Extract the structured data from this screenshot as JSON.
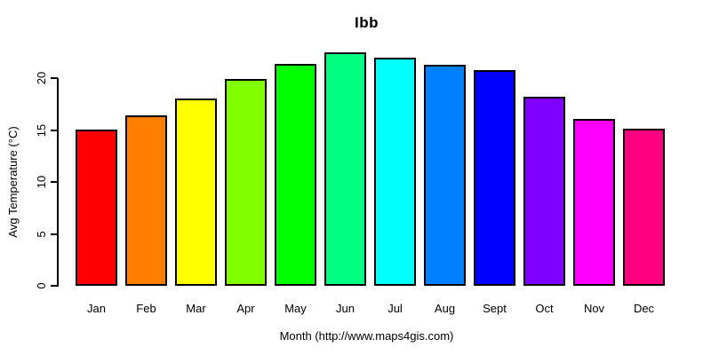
{
  "chart_data": {
    "type": "bar",
    "title": "Ibb",
    "xlabel": "Month (http://www.maps4gis.com)",
    "ylabel": "Avg Temperature (°C)",
    "categories": [
      "Jan",
      "Feb",
      "Mar",
      "Apr",
      "May",
      "Jun",
      "Jul",
      "Aug",
      "Sept",
      "Oct",
      "Nov",
      "Dec"
    ],
    "values": [
      15.0,
      16.4,
      18.0,
      19.9,
      21.4,
      22.5,
      22.0,
      21.3,
      20.8,
      18.2,
      16.1,
      15.1
    ],
    "bar_colors": [
      "#FF0000",
      "#FF8000",
      "#FFFF00",
      "#80FF00",
      "#00FF00",
      "#00FF80",
      "#00FFFF",
      "#0080FF",
      "#0000FF",
      "#8000FF",
      "#FF00FF",
      "#FF0080"
    ],
    "bar_border_color": "#000000",
    "ylim": [
      0,
      22.5
    ],
    "yticks": [
      0,
      5,
      10,
      15,
      20
    ],
    "grid": false,
    "legend": "none",
    "background_color": "#FFFFFF"
  }
}
